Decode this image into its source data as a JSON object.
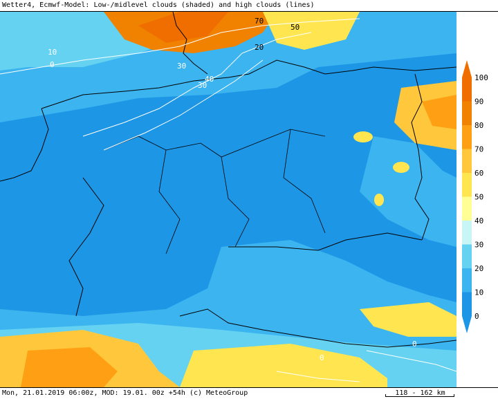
{
  "header": {
    "title": "Wetter4, Ecmwf-Model: Low-/midlevel clouds (shaded) and high clouds (lines)"
  },
  "legend": {
    "unit": "%",
    "levels": [
      "0",
      "10",
      "20",
      "30",
      "40",
      "50",
      "60",
      "70",
      "80",
      "90",
      "100"
    ],
    "colors": [
      "#1e96e6",
      "#3cb4f0",
      "#64d2f0",
      "#c8f5f5",
      "#ffff96",
      "#ffe650",
      "#ffc83c",
      "#ffa014",
      "#f08200",
      "#f06e00"
    ]
  },
  "map": {
    "contour_labels": [
      "70",
      "50",
      "20",
      "10",
      "0",
      "30",
      "40",
      "30",
      "0",
      "0"
    ]
  },
  "footer": {
    "run_info": "Mon, 21.01.2019 06:00z, MOD: 19.01. 00z +54h (c) MeteoGroup",
    "scale": "118 - 162 km"
  }
}
